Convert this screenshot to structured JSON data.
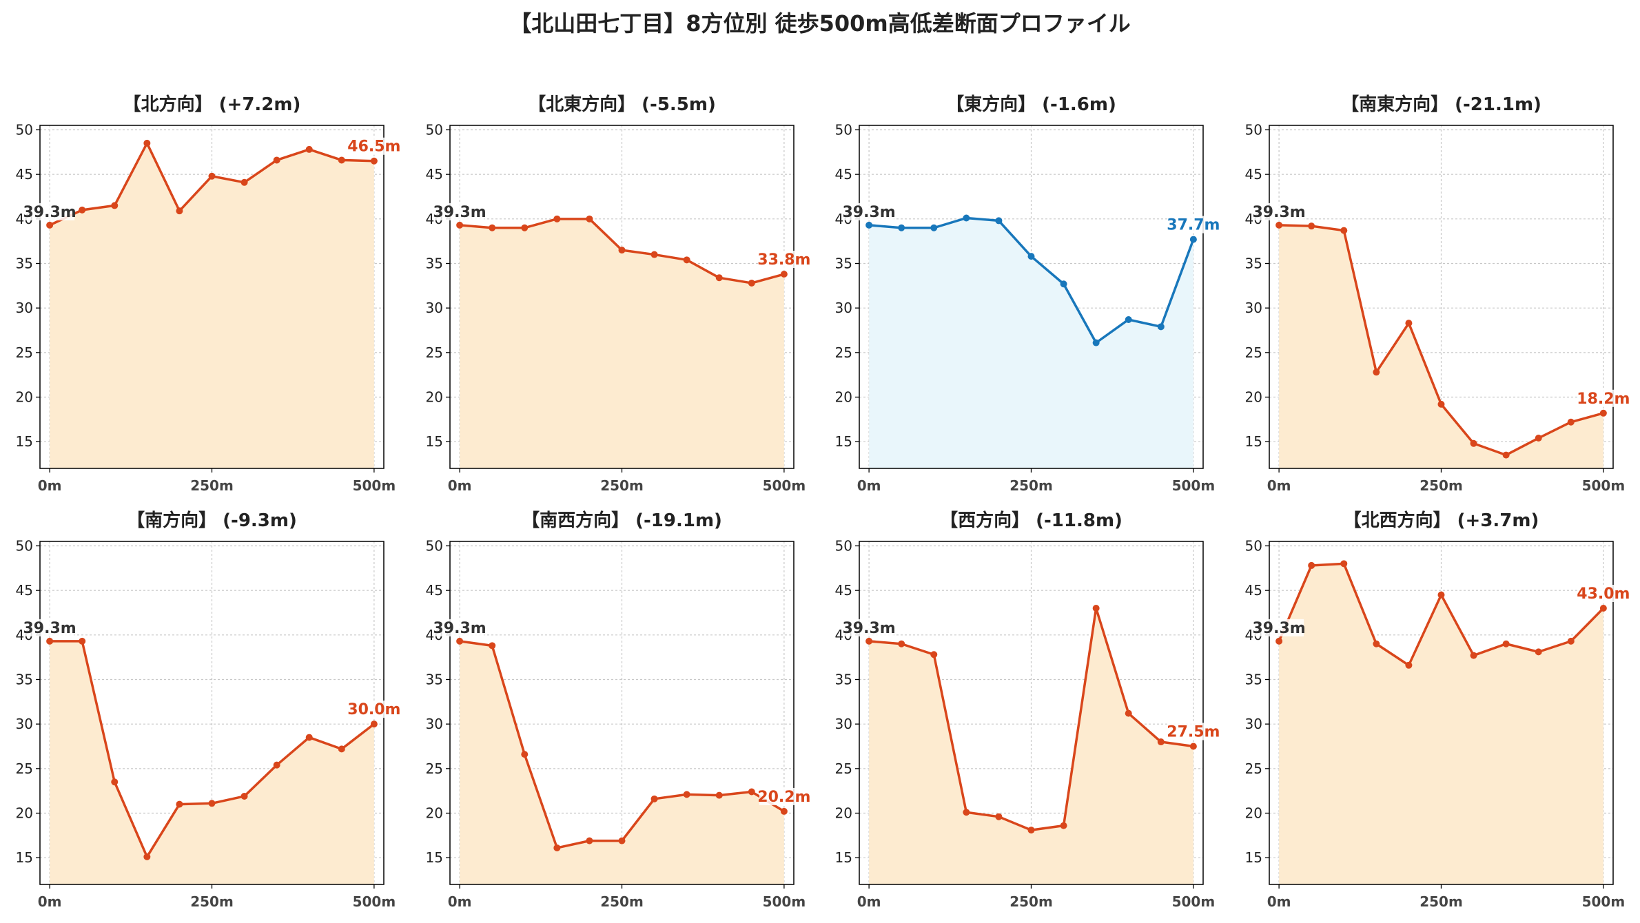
{
  "figure": {
    "title": "【北山田七丁目】8方位別 徒歩500m高低差断面プロファイル"
  },
  "colors": {
    "descent_line": "#d9461b",
    "descent_fill": "#fdebd0",
    "ascent_line": "#1877bb",
    "ascent_fill": "#e9f6fb",
    "start_label": "#333333",
    "grid": "#c8c8c8"
  },
  "chart_data": [
    {
      "type": "area",
      "title": "【北方向】 (+7.2m)",
      "color_scheme": "orange",
      "x": [
        0,
        50,
        100,
        150,
        200,
        250,
        300,
        350,
        400,
        450,
        500
      ],
      "values": [
        39.3,
        41.0,
        41.5,
        48.5,
        40.9,
        44.8,
        44.1,
        46.6,
        47.8,
        46.6,
        46.5
      ],
      "start_label": "39.3m",
      "end_label": "46.5m",
      "xticks": [
        0,
        250,
        500
      ],
      "xtick_labels": [
        "0m",
        "250m",
        "500m"
      ],
      "yticks": [
        15,
        20,
        25,
        30,
        35,
        40,
        45,
        50
      ],
      "ylim": [
        12,
        50.5
      ],
      "xlim": [
        -15,
        515
      ],
      "grid": true
    },
    {
      "type": "area",
      "title": "【北東方向】 (-5.5m)",
      "color_scheme": "orange",
      "x": [
        0,
        50,
        100,
        150,
        200,
        250,
        300,
        350,
        400,
        450,
        500
      ],
      "values": [
        39.3,
        39.0,
        39.0,
        40.0,
        40.0,
        36.5,
        36.0,
        35.4,
        33.4,
        32.8,
        33.8
      ],
      "start_label": "39.3m",
      "end_label": "33.8m",
      "xticks": [
        0,
        250,
        500
      ],
      "xtick_labels": [
        "0m",
        "250m",
        "500m"
      ],
      "yticks": [
        15,
        20,
        25,
        30,
        35,
        40,
        45,
        50
      ],
      "ylim": [
        12,
        50.5
      ],
      "xlim": [
        -15,
        515
      ],
      "grid": true
    },
    {
      "type": "area",
      "title": "【東方向】 (-1.6m)",
      "color_scheme": "blue",
      "x": [
        0,
        50,
        100,
        150,
        200,
        250,
        300,
        350,
        400,
        450,
        500
      ],
      "values": [
        39.3,
        39.0,
        39.0,
        40.1,
        39.8,
        35.8,
        32.7,
        26.1,
        28.7,
        27.9,
        37.7
      ],
      "start_label": "39.3m",
      "end_label": "37.7m",
      "xticks": [
        0,
        250,
        500
      ],
      "xtick_labels": [
        "0m",
        "250m",
        "500m"
      ],
      "yticks": [
        15,
        20,
        25,
        30,
        35,
        40,
        45,
        50
      ],
      "ylim": [
        12,
        50.5
      ],
      "xlim": [
        -15,
        515
      ],
      "grid": true
    },
    {
      "type": "area",
      "title": "【南東方向】 (-21.1m)",
      "color_scheme": "orange",
      "x": [
        0,
        50,
        100,
        150,
        200,
        250,
        300,
        350,
        400,
        450,
        500
      ],
      "values": [
        39.3,
        39.2,
        38.7,
        22.8,
        28.3,
        19.2,
        14.8,
        13.5,
        15.4,
        17.2,
        18.2
      ],
      "start_label": "39.3m",
      "end_label": "18.2m",
      "xticks": [
        0,
        250,
        500
      ],
      "xtick_labels": [
        "0m",
        "250m",
        "500m"
      ],
      "yticks": [
        15,
        20,
        25,
        30,
        35,
        40,
        45,
        50
      ],
      "ylim": [
        12,
        50.5
      ],
      "xlim": [
        -15,
        515
      ],
      "grid": true
    },
    {
      "type": "area",
      "title": "【南方向】 (-9.3m)",
      "color_scheme": "orange",
      "x": [
        0,
        50,
        100,
        150,
        200,
        250,
        300,
        350,
        400,
        450,
        500
      ],
      "values": [
        39.3,
        39.3,
        23.5,
        15.1,
        21.0,
        21.1,
        21.9,
        25.4,
        28.5,
        27.2,
        30.0
      ],
      "start_label": "39.3m",
      "end_label": "30.0m",
      "xticks": [
        0,
        250,
        500
      ],
      "xtick_labels": [
        "0m",
        "250m",
        "500m"
      ],
      "yticks": [
        15,
        20,
        25,
        30,
        35,
        40,
        45,
        50
      ],
      "ylim": [
        12,
        50.5
      ],
      "xlim": [
        -15,
        515
      ],
      "grid": true
    },
    {
      "type": "area",
      "title": "【南西方向】 (-19.1m)",
      "color_scheme": "orange",
      "x": [
        0,
        50,
        100,
        150,
        200,
        250,
        300,
        350,
        400,
        450,
        500
      ],
      "values": [
        39.3,
        38.8,
        26.6,
        16.1,
        16.9,
        16.9,
        21.6,
        22.1,
        22.0,
        22.4,
        20.2
      ],
      "start_label": "39.3m",
      "end_label": "20.2m",
      "xticks": [
        0,
        250,
        500
      ],
      "xtick_labels": [
        "0m",
        "250m",
        "500m"
      ],
      "yticks": [
        15,
        20,
        25,
        30,
        35,
        40,
        45,
        50
      ],
      "ylim": [
        12,
        50.5
      ],
      "xlim": [
        -15,
        515
      ],
      "grid": true
    },
    {
      "type": "area",
      "title": "【西方向】 (-11.8m)",
      "color_scheme": "orange",
      "x": [
        0,
        50,
        100,
        150,
        200,
        250,
        300,
        350,
        400,
        450,
        500
      ],
      "values": [
        39.3,
        39.0,
        37.8,
        20.1,
        19.6,
        18.1,
        18.6,
        43.0,
        31.2,
        28.0,
        27.5
      ],
      "start_label": "39.3m",
      "end_label": "27.5m",
      "xticks": [
        0,
        250,
        500
      ],
      "xtick_labels": [
        "0m",
        "250m",
        "500m"
      ],
      "yticks": [
        15,
        20,
        25,
        30,
        35,
        40,
        45,
        50
      ],
      "ylim": [
        12,
        50.5
      ],
      "xlim": [
        -15,
        515
      ],
      "grid": true
    },
    {
      "type": "area",
      "title": "【北西方向】 (+3.7m)",
      "color_scheme": "orange",
      "x": [
        0,
        50,
        100,
        150,
        200,
        250,
        300,
        350,
        400,
        450,
        500
      ],
      "values": [
        39.3,
        47.8,
        48.0,
        39.0,
        36.6,
        44.5,
        37.7,
        39.0,
        38.1,
        39.3,
        43.0
      ],
      "start_label": "39.3m",
      "end_label": "43.0m",
      "xticks": [
        0,
        250,
        500
      ],
      "xtick_labels": [
        "0m",
        "250m",
        "500m"
      ],
      "yticks": [
        15,
        20,
        25,
        30,
        35,
        40,
        45,
        50
      ],
      "ylim": [
        12,
        50.5
      ],
      "xlim": [
        -15,
        515
      ],
      "grid": true
    }
  ]
}
